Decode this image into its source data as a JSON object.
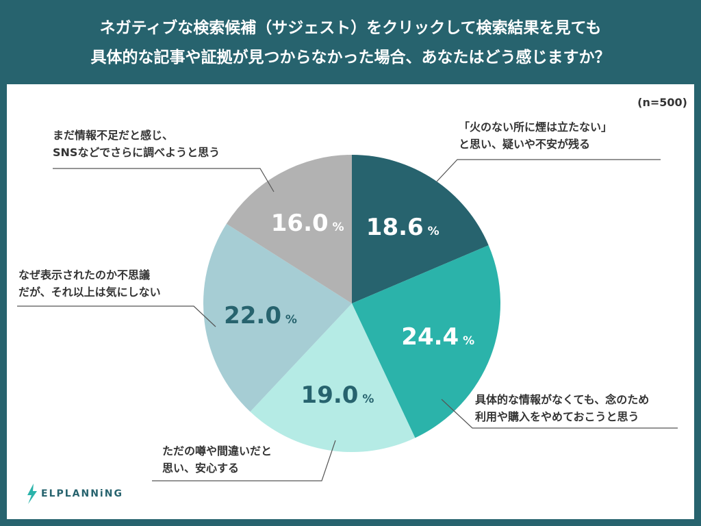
{
  "title_lines": [
    "ネガティブな検索候補（サジェスト）をクリックして検索結果を見ても",
    "具体的な記事や証拠が見つからなかった場合、あなたはどう感じますか？"
  ],
  "sample": "(n=500)",
  "logo": "ELPLANNiNG",
  "chart_data": {
    "type": "pie",
    "title": "ネガティブな検索候補（サジェスト）をクリックして検索結果を見ても具体的な記事や証拠が見つからなかった場合、あなたはどう感じますか？",
    "unit": "%",
    "start": "top, clockwise",
    "slices": [
      {
        "label": [
          "「火のない所に煙は立たない」",
          "と思い、疑いや不安が残る"
        ],
        "value": 18.6,
        "display": "18.6",
        "color": "#27636e",
        "text_color": "#ffffff"
      },
      {
        "label": [
          "具体的な情報がなくても、念のため",
          "利用や購入をやめておこうと思う"
        ],
        "value": 24.4,
        "display": "24.4",
        "color": "#2bb3aa",
        "text_color": "#ffffff"
      },
      {
        "label": [
          "ただの噂や間違いだと",
          "思い、安心する"
        ],
        "value": 19.0,
        "display": "19.0",
        "color": "#b5ebe5",
        "text_color": "#27636e"
      },
      {
        "label": [
          "なぜ表示されたのか不思議",
          "だが、それ以上は気にしない"
        ],
        "value": 22.0,
        "display": "22.0",
        "color": "#a6cdd4",
        "text_color": "#27636e"
      },
      {
        "label": [
          "まだ情報不足だと感じ、",
          "SNSなどでさらに調べようと思う"
        ],
        "value": 16.0,
        "display": "16.0",
        "color": "#b2b2b2",
        "text_color": "#ffffff"
      }
    ]
  }
}
